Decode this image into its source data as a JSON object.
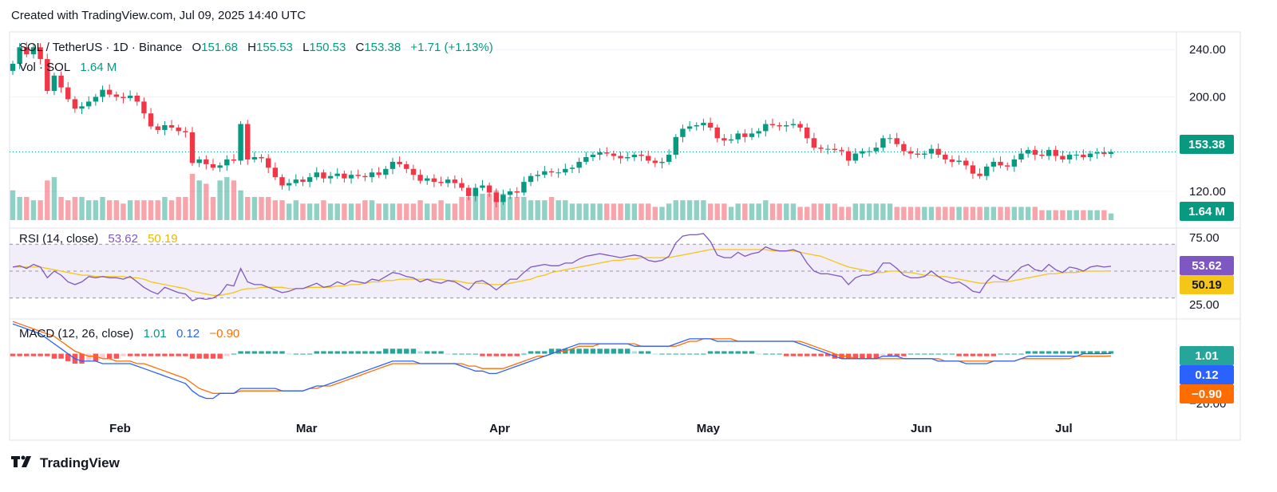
{
  "header": {
    "caption": "Created with TradingView.com, Jul 09, 2025 14:40 UTC"
  },
  "symbol": {
    "title": "SOL / TetherUS · 1D · Binance",
    "o_label": "O",
    "o": "151.68",
    "h_label": "H",
    "h": "155.53",
    "l_label": "L",
    "l": "150.53",
    "c_label": "C",
    "c": "153.38",
    "change": "+1.71 (+1.13%)"
  },
  "volume_legend": {
    "label": "Vol · SOL",
    "value": "1.64 M"
  },
  "rsi_legend": {
    "label": "RSI (14, close)",
    "rsi": "53.62",
    "signal": "50.19"
  },
  "macd_legend": {
    "label": "MACD (12, 26, close)",
    "hist": "1.01",
    "macd": "0.12",
    "signal": "−0.90"
  },
  "price_tags": {
    "price": "153.38",
    "volume": "1.64 M",
    "rsi": "53.62",
    "rsi_signal": "50.19",
    "macd_hist": "1.01",
    "macd": "0.12",
    "macd_signal": "−0.90"
  },
  "colors": {
    "up": "#089981",
    "down": "#f23645",
    "rsi": "#7e57c2",
    "rsi_signal": "#f5c518",
    "macd": "#2962ff",
    "macd_signal": "#ff6d00"
  },
  "footer": {
    "brand": "TradingView",
    "logo_icon": "tradingview-logo-icon"
  },
  "chart_data": [
    {
      "type": "candlestick",
      "title": "SOL / TetherUS · 1D · Binance",
      "y_ticks": [
        "240.00",
        "200.00",
        "120.00"
      ],
      "ylim": [
        95,
        255
      ],
      "x_labels": [
        "Feb",
        "Mar",
        "Apr",
        "May",
        "Jun",
        "Jul"
      ],
      "closes": [
        228,
        242,
        236,
        242,
        232,
        205,
        218,
        208,
        198,
        190,
        192,
        196,
        200,
        206,
        202,
        200,
        199,
        201,
        196,
        186,
        175,
        172,
        176,
        174,
        171,
        170,
        144,
        147,
        143,
        140,
        142,
        147,
        146,
        177,
        147,
        149,
        148,
        140,
        132,
        125,
        127,
        130,
        128,
        132,
        136,
        131,
        133,
        135,
        131,
        134,
        133,
        132,
        136,
        134,
        139,
        145,
        143,
        139,
        134,
        129,
        131,
        128,
        127,
        130,
        127,
        123,
        116,
        123,
        125,
        119,
        111,
        117,
        120,
        119,
        128,
        133,
        134,
        137,
        136,
        136,
        139,
        140,
        145,
        149,
        151,
        153,
        152,
        150,
        148,
        149,
        151,
        150,
        146,
        144,
        145,
        151,
        166,
        173,
        175,
        176,
        178,
        174,
        165,
        163,
        164,
        169,
        166,
        169,
        171,
        177,
        176,
        175,
        176,
        177,
        174,
        165,
        157,
        156,
        156,
        155,
        154,
        146,
        152,
        154,
        154,
        157,
        165,
        165,
        160,
        154,
        152,
        151,
        152,
        156,
        151,
        147,
        145,
        146,
        142,
        135,
        133,
        141,
        145,
        142,
        141,
        147,
        152,
        155,
        151,
        150,
        155,
        150,
        147,
        151,
        151,
        149,
        152,
        153,
        151.68,
        153.38
      ],
      "x": "daily candles, Jan 18 – Jul 09, 2025"
    },
    {
      "type": "bar",
      "name": "Volume",
      "value_tag": "1.64 M",
      "values": [
        9,
        7,
        7,
        6,
        6,
        12,
        13,
        7,
        6,
        7,
        7,
        6,
        6,
        7,
        6,
        6,
        5,
        6,
        6,
        6,
        6,
        6,
        7,
        6,
        7,
        7,
        14,
        12,
        11,
        7,
        12,
        13,
        12,
        9,
        7,
        7,
        7,
        7,
        6,
        6,
        5,
        6,
        5,
        5,
        5,
        6,
        5,
        5,
        5,
        5,
        5,
        6,
        6,
        5,
        5,
        5,
        5,
        5,
        5,
        6,
        5,
        5,
        6,
        5,
        5,
        7,
        7,
        9,
        8,
        8,
        9,
        8,
        7,
        7,
        7,
        6,
        6,
        6,
        7,
        6,
        6,
        5,
        5,
        5,
        5,
        5,
        5,
        5,
        5,
        5,
        5,
        5,
        5,
        4,
        4,
        5,
        6,
        6,
        6,
        6,
        6,
        5,
        5,
        5,
        4,
        5,
        5,
        5,
        5,
        6,
        5,
        5,
        5,
        5,
        4,
        4,
        5,
        5,
        5,
        5,
        4,
        4,
        5,
        5,
        5,
        5,
        5,
        5,
        4,
        4,
        4,
        4,
        4,
        4,
        4,
        4,
        4,
        4,
        4,
        4,
        4,
        4,
        4,
        4,
        4,
        4,
        4,
        4,
        4,
        3,
        3,
        3,
        3,
        3,
        3,
        3,
        3,
        3,
        3,
        2
      ]
    },
    {
      "type": "line",
      "name": "RSI (14, close)",
      "y_ticks": [
        "75.00",
        "25.00"
      ],
      "ylim": [
        18,
        82
      ],
      "rsi": [
        53,
        54,
        52,
        55,
        53,
        45,
        50,
        47,
        42,
        40,
        42,
        46,
        45,
        46,
        45,
        45,
        44,
        46,
        42,
        38,
        35,
        33,
        38,
        36,
        34,
        33,
        28,
        30,
        29,
        30,
        33,
        40,
        39,
        52,
        42,
        40,
        40,
        38,
        36,
        34,
        35,
        37,
        37,
        39,
        41,
        38,
        39,
        42,
        40,
        43,
        42,
        41,
        44,
        43,
        46,
        49,
        48,
        46,
        45,
        42,
        44,
        42,
        41,
        43,
        42,
        39,
        36,
        42,
        43,
        40,
        36,
        40,
        44,
        44,
        49,
        53,
        54,
        55,
        54,
        54,
        56,
        56,
        59,
        61,
        62,
        63,
        62,
        61,
        60,
        61,
        62,
        61,
        58,
        57,
        58,
        61,
        71,
        76,
        77,
        77,
        78,
        72,
        62,
        60,
        60,
        64,
        61,
        63,
        64,
        68,
        66,
        65,
        65,
        66,
        64,
        56,
        50,
        48,
        48,
        47,
        46,
        40,
        45,
        47,
        47,
        49,
        56,
        56,
        52,
        47,
        45,
        45,
        46,
        50,
        46,
        43,
        41,
        42,
        39,
        35,
        34,
        42,
        47,
        44,
        43,
        48,
        53,
        55,
        51,
        50,
        55,
        51,
        49,
        53,
        52,
        50,
        53,
        54,
        53,
        53.62
      ],
      "signal": [
        53,
        53,
        53,
        53,
        53,
        52,
        51,
        50,
        49,
        48,
        47,
        47,
        46,
        46,
        46,
        46,
        46,
        45,
        45,
        44,
        42,
        41,
        40,
        39,
        38,
        37,
        35,
        34,
        33,
        32,
        32,
        33,
        34,
        36,
        37,
        37,
        38,
        38,
        38,
        38,
        37,
        37,
        37,
        38,
        38,
        38,
        38,
        39,
        39,
        40,
        40,
        41,
        42,
        42,
        43,
        43,
        44,
        44,
        44,
        44,
        44,
        44,
        44,
        43,
        43,
        42,
        41,
        41,
        41,
        40,
        40,
        40,
        41,
        42,
        43,
        44,
        46,
        47,
        49,
        50,
        51,
        52,
        53,
        54,
        55,
        56,
        57,
        58,
        58,
        59,
        59,
        60,
        60,
        60,
        60,
        60,
        61,
        62,
        63,
        64,
        65,
        66,
        66,
        66,
        66,
        66,
        66,
        66,
        66,
        66,
        65,
        65,
        65,
        65,
        64,
        63,
        62,
        61,
        59,
        57,
        55,
        53,
        52,
        51,
        50,
        49,
        49,
        50,
        50,
        49,
        49,
        48,
        47,
        47,
        46,
        46,
        45,
        44,
        43,
        42,
        41,
        41,
        42,
        42,
        42,
        43,
        44,
        45,
        46,
        47,
        48,
        48,
        49,
        49,
        49,
        50,
        50,
        50,
        50,
        50.19
      ]
    },
    {
      "type": "bar",
      "name": "MACD (12, 26, close)",
      "y_ticks": [
        "−20.00"
      ],
      "ylim": [
        -22,
        14
      ],
      "histogram": [
        -1,
        -1,
        -1,
        -1,
        -1,
        -1,
        -2,
        -2,
        -3,
        -4,
        -4,
        -3,
        -3,
        -2,
        -2,
        -2,
        -1,
        -1,
        -1,
        -1,
        -1,
        -1,
        -1,
        -1,
        -1,
        -1,
        -2,
        -2,
        -2,
        -2,
        -2,
        -1,
        0,
        1,
        1,
        1,
        1,
        1,
        1,
        1,
        0,
        0,
        0,
        0,
        1,
        1,
        1,
        1,
        1,
        1,
        1,
        1,
        1,
        1,
        2,
        2,
        2,
        2,
        2,
        1,
        1,
        1,
        1,
        0,
        0,
        0,
        0,
        0,
        -1,
        -1,
        -1,
        -1,
        -1,
        -1,
        0,
        1,
        1,
        1,
        2,
        2,
        2,
        2,
        2,
        2,
        2,
        2,
        2,
        2,
        2,
        2,
        1,
        1,
        1,
        0,
        0,
        0,
        0,
        0,
        0,
        0,
        0,
        1,
        1,
        1,
        1,
        1,
        1,
        1,
        0,
        0,
        0,
        0,
        -1,
        -1,
        -1,
        -1,
        -1,
        -1,
        -1,
        -2,
        -2,
        -2,
        -2,
        -2,
        -2,
        -2,
        -1,
        -1,
        -1,
        -1,
        0,
        0,
        0,
        0,
        0,
        0,
        0,
        -1,
        -1,
        -1,
        -1,
        -1,
        -1,
        0,
        0,
        0,
        0,
        1,
        1,
        1,
        1,
        1,
        1,
        1,
        1,
        1,
        1,
        1,
        1,
        1.01
      ],
      "macd": [
        12,
        11,
        10,
        9,
        8,
        6,
        4,
        2,
        0,
        -2,
        -3,
        -3,
        -3,
        -4,
        -4,
        -4,
        -4,
        -4,
        -5,
        -6,
        -7,
        -8,
        -9,
        -10,
        -11,
        -12,
        -15,
        -17,
        -18,
        -18,
        -16,
        -16,
        -16,
        -14,
        -14,
        -14,
        -14,
        -14,
        -14,
        -15,
        -15,
        -15,
        -15,
        -14,
        -13,
        -13,
        -12,
        -11,
        -10,
        -9,
        -8,
        -7,
        -6,
        -5,
        -4,
        -3,
        -3,
        -3,
        -3,
        -4,
        -4,
        -4,
        -4,
        -4,
        -4,
        -5,
        -6,
        -7,
        -7,
        -8,
        -8,
        -7,
        -6,
        -5,
        -4,
        -3,
        -2,
        -1,
        0,
        1,
        2,
        3,
        4,
        4,
        4,
        4,
        4,
        4,
        4,
        4,
        3,
        3,
        3,
        3,
        3,
        3,
        4,
        5,
        6,
        6,
        6,
        6,
        5,
        5,
        5,
        5,
        5,
        5,
        5,
        5,
        5,
        5,
        5,
        5,
        4,
        3,
        2,
        1,
        0,
        -1,
        -2,
        -2,
        -2,
        -2,
        -2,
        -2,
        -1,
        -1,
        -1,
        -2,
        -2,
        -2,
        -2,
        -2,
        -3,
        -3,
        -3,
        -3,
        -4,
        -4,
        -4,
        -4,
        -3,
        -3,
        -3,
        -3,
        -2,
        -1,
        -1,
        -1,
        -1,
        -1,
        -1,
        -1,
        -1,
        0,
        0,
        0,
        0,
        0.12
      ],
      "signal": [
        13,
        12,
        11,
        10,
        9,
        8,
        7,
        5,
        3,
        1,
        0,
        -1,
        -1,
        -2,
        -2,
        -3,
        -3,
        -3,
        -4,
        -4,
        -5,
        -6,
        -7,
        -8,
        -9,
        -10,
        -12,
        -14,
        -15,
        -16,
        -16,
        -16,
        -16,
        -15,
        -15,
        -15,
        -15,
        -15,
        -15,
        -15,
        -15,
        -15,
        -15,
        -14,
        -14,
        -13,
        -13,
        -12,
        -11,
        -10,
        -9,
        -8,
        -7,
        -6,
        -5,
        -4,
        -4,
        -4,
        -4,
        -4,
        -4,
        -4,
        -4,
        -4,
        -4,
        -4,
        -5,
        -5,
        -6,
        -6,
        -6,
        -6,
        -5,
        -4,
        -3,
        -2,
        -1,
        -1,
        0,
        1,
        1,
        2,
        3,
        3,
        3,
        4,
        4,
        4,
        4,
        4,
        4,
        3,
        3,
        3,
        3,
        3,
        3,
        4,
        5,
        5,
        6,
        6,
        6,
        6,
        6,
        5,
        5,
        5,
        5,
        5,
        5,
        5,
        5,
        5,
        5,
        4,
        3,
        2,
        1,
        0,
        -1,
        -1,
        -2,
        -2,
        -2,
        -2,
        -2,
        -2,
        -2,
        -2,
        -2,
        -2,
        -2,
        -2,
        -2,
        -3,
        -3,
        -3,
        -3,
        -3,
        -3,
        -3,
        -3,
        -3,
        -3,
        -3,
        -2,
        -2,
        -2,
        -2,
        -2,
        -2,
        -2,
        -2,
        -1,
        -1,
        -1,
        -1,
        -1,
        -0.9
      ]
    }
  ]
}
